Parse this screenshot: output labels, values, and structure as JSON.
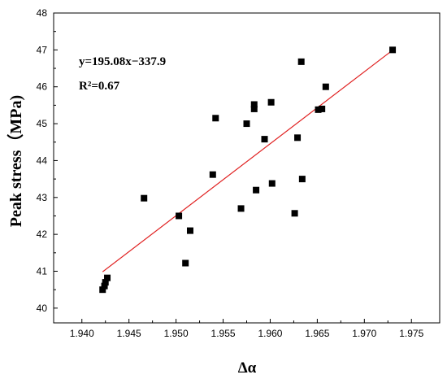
{
  "chart_data": {
    "type": "scatter",
    "xlabel": "Δα",
    "ylabel": "Peak stress（MPa)",
    "xlim": [
      1.937,
      1.978
    ],
    "ylim": [
      39.6,
      48.0
    ],
    "xticks": [
      "1.940",
      "1.945",
      "1.950",
      "1.955",
      "1.960",
      "1.965",
      "1.970",
      "1.975"
    ],
    "yticks": [
      "40",
      "41",
      "42",
      "43",
      "44",
      "45",
      "46",
      "47",
      "48"
    ],
    "annotations": {
      "equation": "y=195.08x−337.9",
      "r2": "R²=0.67"
    },
    "colors": {
      "points": "#000000",
      "fit": "#e02020"
    },
    "fit": {
      "slope": 195.08,
      "intercept": -337.9,
      "x_range": [
        1.9422,
        1.973
      ]
    },
    "points": [
      {
        "x": 1.9422,
        "y": 40.5
      },
      {
        "x": 1.9424,
        "y": 40.6
      },
      {
        "x": 1.9425,
        "y": 40.7
      },
      {
        "x": 1.9427,
        "y": 40.82
      },
      {
        "x": 1.9466,
        "y": 42.98
      },
      {
        "x": 1.9503,
        "y": 42.5
      },
      {
        "x": 1.951,
        "y": 41.22
      },
      {
        "x": 1.9515,
        "y": 42.1
      },
      {
        "x": 1.9539,
        "y": 43.62
      },
      {
        "x": 1.9542,
        "y": 45.15
      },
      {
        "x": 1.9569,
        "y": 42.7
      },
      {
        "x": 1.9575,
        "y": 45.0
      },
      {
        "x": 1.9583,
        "y": 45.4
      },
      {
        "x": 1.9583,
        "y": 45.52
      },
      {
        "x": 1.9585,
        "y": 43.2
      },
      {
        "x": 1.9594,
        "y": 44.58
      },
      {
        "x": 1.9601,
        "y": 45.58
      },
      {
        "x": 1.9602,
        "y": 43.38
      },
      {
        "x": 1.9626,
        "y": 42.57
      },
      {
        "x": 1.9629,
        "y": 44.62
      },
      {
        "x": 1.9633,
        "y": 46.68
      },
      {
        "x": 1.9634,
        "y": 43.5
      },
      {
        "x": 1.9651,
        "y": 45.38
      },
      {
        "x": 1.9655,
        "y": 45.4
      },
      {
        "x": 1.9659,
        "y": 46.0
      },
      {
        "x": 1.973,
        "y": 47.0
      }
    ]
  }
}
